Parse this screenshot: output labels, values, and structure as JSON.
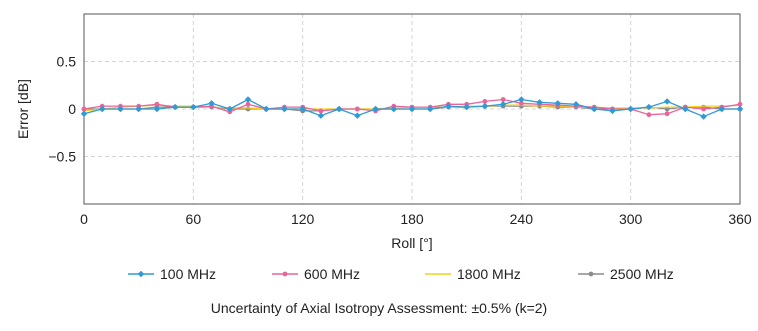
{
  "chart_data": {
    "type": "line",
    "title": "",
    "xlabel": "Roll [°]",
    "ylabel": "Error [dB]",
    "xlim": [
      0,
      360
    ],
    "ylim": [
      -1,
      1
    ],
    "xticks": [
      0,
      60,
      120,
      180,
      240,
      300,
      360
    ],
    "yticks": [
      -0.5,
      0,
      0.5
    ],
    "ytick_labels": [
      "−0.5",
      "0",
      "0.5"
    ],
    "grid": true,
    "legend_position": "bottom",
    "x": [
      0,
      10,
      20,
      30,
      40,
      50,
      60,
      70,
      80,
      90,
      100,
      110,
      120,
      130,
      140,
      150,
      160,
      170,
      180,
      190,
      200,
      210,
      220,
      230,
      240,
      250,
      260,
      270,
      280,
      290,
      300,
      310,
      320,
      330,
      340,
      350,
      360
    ],
    "series": [
      {
        "name": "100 MHz",
        "color": "#2e9ad6",
        "marker": "diamond",
        "values": [
          -0.05,
          0.0,
          0.0,
          0.0,
          0.0,
          0.02,
          0.02,
          0.06,
          0.0,
          0.1,
          0.0,
          0.0,
          0.0,
          -0.07,
          0.0,
          -0.07,
          0.0,
          0.0,
          0.0,
          0.0,
          0.03,
          0.02,
          0.03,
          0.05,
          0.1,
          0.07,
          0.06,
          0.05,
          0.0,
          -0.02,
          0.0,
          0.02,
          0.08,
          0.0,
          -0.08,
          0.0,
          0.0
        ]
      },
      {
        "name": "600 MHz",
        "color": "#e8649a",
        "marker": "circle",
        "values": [
          0.0,
          0.03,
          0.03,
          0.03,
          0.05,
          0.02,
          0.02,
          0.03,
          -0.03,
          0.05,
          0.0,
          0.02,
          0.02,
          -0.02,
          0.0,
          0.0,
          -0.02,
          0.03,
          0.02,
          0.02,
          0.05,
          0.05,
          0.08,
          0.1,
          0.06,
          0.05,
          0.04,
          0.03,
          0.02,
          0.0,
          0.0,
          -0.06,
          -0.05,
          0.02,
          0.0,
          0.02,
          0.05
        ]
      },
      {
        "name": "1800 MHz",
        "color": "#f2d21b",
        "marker": "none",
        "values": [
          -0.02,
          0.0,
          0.02,
          0.03,
          0.04,
          0.03,
          0.03,
          0.02,
          0.01,
          0.01,
          0.0,
          0.0,
          0.0,
          0.0,
          0.0,
          0.0,
          0.0,
          0.01,
          0.02,
          0.02,
          0.02,
          0.03,
          0.03,
          0.04,
          0.04,
          0.03,
          0.03,
          0.02,
          0.02,
          0.01,
          0.01,
          0.01,
          0.02,
          0.02,
          0.03,
          0.03,
          0.04
        ]
      },
      {
        "name": "2500 MHz",
        "color": "#8c8c8c",
        "marker": "circle",
        "values": [
          0.0,
          0.0,
          0.0,
          0.0,
          0.02,
          0.02,
          0.02,
          0.02,
          0.0,
          0.0,
          0.0,
          0.0,
          -0.02,
          -0.02,
          0.0,
          0.0,
          0.0,
          0.0,
          0.0,
          0.0,
          0.02,
          0.02,
          0.03,
          0.03,
          0.03,
          0.03,
          0.02,
          0.02,
          0.0,
          0.0,
          0.0,
          0.02,
          0.0,
          0.02,
          0.02,
          0.0,
          0.0
        ]
      }
    ]
  },
  "footer_note": "Uncertainty of Axial Isotropy Assessment: ±0.5% (k=2)"
}
